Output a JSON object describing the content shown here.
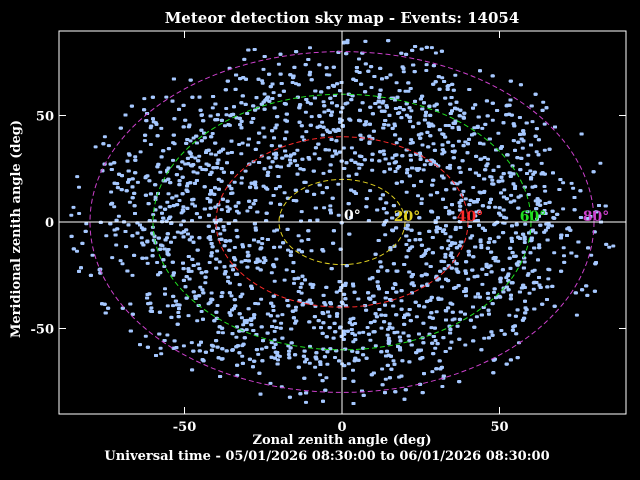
{
  "chart_data": {
    "type": "scatter",
    "title": "Meteor detection sky map - Events: 14054",
    "xlabel": "Zonal zenith angle (deg)",
    "ylabel": "Meridional zenith angle (deg)",
    "footer": "Universal time - 05/01/2026 08:30:00 to 06/01/2026 08:30:00",
    "event_count": 14054,
    "xlim": [
      -90,
      90
    ],
    "ylim": [
      -90,
      90
    ],
    "x_ticks": [
      -50,
      0,
      50
    ],
    "y_ticks": [
      -50,
      0,
      50
    ],
    "point_color": "#a6c8ff",
    "crosshair_color": "#ffffff",
    "zenith_circles": [
      {
        "angle": 20,
        "label": "20°",
        "color": "#e0d020"
      },
      {
        "angle": 40,
        "label": "40°",
        "color": "#ff2a2a"
      },
      {
        "angle": 60,
        "label": "60°",
        "color": "#20e020"
      },
      {
        "angle": 80,
        "label": "80°",
        "color": "#cc40cc"
      }
    ],
    "zero_label": "0°",
    "distribution": "annular density of detections between about 20° and 80° zenith angle, sparse near zenith, ellipse wider east-west"
  }
}
